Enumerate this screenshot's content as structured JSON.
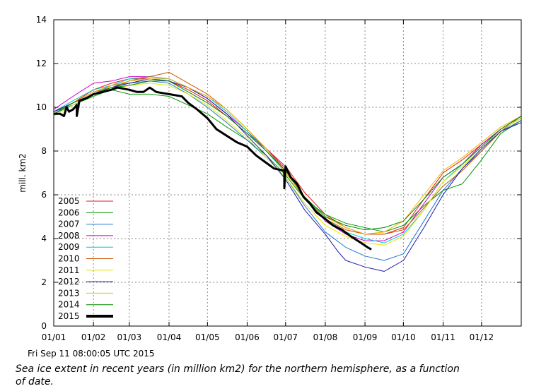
{
  "footer": {
    "timestamp": "Fri Sep 11 08:00:05 UTC 2015",
    "caption": "Sea ice extent in recent years (in million km2) for the northern hemisphere, as a function of date."
  },
  "chart_data": {
    "type": "line",
    "title": "",
    "xlabel": "",
    "ylabel": "mill. km2",
    "xlim": [
      0,
      365
    ],
    "ylim": [
      0,
      14
    ],
    "grid": true,
    "legend_position": "bottom-left",
    "x_ticks": [
      {
        "day": 0,
        "label": "01/01"
      },
      {
        "day": 31,
        "label": "01/02"
      },
      {
        "day": 59,
        "label": "01/03"
      },
      {
        "day": 90,
        "label": "01/04"
      },
      {
        "day": 120,
        "label": "01/05"
      },
      {
        "day": 151,
        "label": "01/06"
      },
      {
        "day": 181,
        "label": "01/07"
      },
      {
        "day": 212,
        "label": "01/08"
      },
      {
        "day": 243,
        "label": "01/09"
      },
      {
        "day": 273,
        "label": "01/10"
      },
      {
        "day": 304,
        "label": "01/11"
      },
      {
        "day": 334,
        "label": "01/12"
      }
    ],
    "y_ticks": [
      {
        "value": 0,
        "label": "0"
      },
      {
        "value": 2,
        "label": "2"
      },
      {
        "value": 4,
        "label": "4"
      },
      {
        "value": 6,
        "label": "6"
      },
      {
        "value": 8,
        "label": "8"
      },
      {
        "value": 10,
        "label": "10"
      },
      {
        "value": 12,
        "label": "12"
      },
      {
        "value": 14,
        "label": "14"
      }
    ],
    "series": [
      {
        "name": "2005",
        "color": "#e41a1c",
        "width": 1,
        "x": [
          0,
          15,
          31,
          45,
          59,
          75,
          90,
          105,
          120,
          135,
          151,
          166,
          181,
          196,
          212,
          228,
          243,
          258,
          273,
          289,
          304,
          319,
          334,
          349,
          365
        ],
        "y": [
          9.8,
          10.2,
          10.8,
          11.1,
          11.3,
          11.3,
          11.2,
          10.8,
          10.3,
          9.6,
          8.8,
          8.1,
          7.3,
          6.1,
          5.1,
          4.5,
          4.2,
          4.2,
          4.5,
          5.8,
          7.0,
          7.6,
          8.3,
          9.0,
          9.5
        ]
      },
      {
        "name": "2006",
        "color": "#009900",
        "width": 1,
        "x": [
          0,
          15,
          31,
          45,
          59,
          75,
          90,
          105,
          120,
          135,
          151,
          166,
          181,
          196,
          212,
          228,
          243,
          258,
          273,
          289,
          304,
          319,
          334,
          349,
          365
        ],
        "y": [
          9.7,
          10.1,
          10.5,
          10.8,
          10.6,
          10.6,
          10.5,
          10.1,
          9.7,
          9.1,
          8.5,
          7.8,
          6.9,
          5.8,
          5.1,
          4.7,
          4.5,
          4.3,
          4.6,
          5.5,
          6.2,
          6.5,
          7.6,
          8.8,
          9.4
        ]
      },
      {
        "name": "2007",
        "color": "#1f78d1",
        "width": 1,
        "x": [
          0,
          15,
          31,
          45,
          59,
          75,
          90,
          105,
          120,
          135,
          151,
          166,
          181,
          196,
          212,
          228,
          243,
          258,
          273,
          289,
          304,
          319,
          334,
          349,
          365
        ],
        "y": [
          9.8,
          10.1,
          10.6,
          11.0,
          11.1,
          11.2,
          11.1,
          10.6,
          10.0,
          9.3,
          8.5,
          7.7,
          6.8,
          5.5,
          4.3,
          3.6,
          3.2,
          3.0,
          3.3,
          4.8,
          6.2,
          7.2,
          8.0,
          8.9,
          9.4
        ]
      },
      {
        "name": "2008",
        "color": "#cc00cc",
        "width": 1,
        "x": [
          0,
          15,
          31,
          45,
          59,
          75,
          90,
          105,
          120,
          135,
          151,
          166,
          181,
          196,
          212,
          228,
          243,
          258,
          273,
          289,
          304,
          319,
          334,
          349,
          365
        ],
        "y": [
          9.9,
          10.5,
          11.1,
          11.2,
          11.4,
          11.4,
          11.3,
          10.9,
          10.4,
          9.7,
          8.9,
          8.1,
          7.2,
          5.9,
          4.8,
          4.2,
          3.9,
          3.9,
          4.3,
          5.6,
          6.8,
          7.4,
          8.3,
          9.0,
          9.6
        ]
      },
      {
        "name": "2009",
        "color": "#00cccc",
        "width": 1,
        "x": [
          0,
          15,
          31,
          45,
          59,
          75,
          90,
          105,
          120,
          135,
          151,
          166,
          181,
          196,
          212,
          228,
          243,
          258,
          273,
          289,
          304,
          319,
          334,
          349,
          365
        ],
        "y": [
          9.8,
          10.3,
          10.8,
          11.0,
          11.3,
          11.4,
          11.3,
          10.9,
          10.5,
          9.8,
          8.9,
          8.0,
          7.0,
          5.9,
          4.9,
          4.3,
          4.0,
          3.8,
          4.2,
          5.3,
          6.6,
          7.4,
          8.2,
          9.0,
          9.5
        ]
      },
      {
        "name": "2010",
        "color": "#cc5500",
        "width": 1,
        "x": [
          0,
          15,
          31,
          45,
          59,
          75,
          90,
          105,
          120,
          135,
          151,
          166,
          181,
          196,
          212,
          228,
          243,
          258,
          273,
          289,
          304,
          319,
          334,
          349,
          365
        ],
        "y": [
          9.8,
          10.2,
          10.7,
          10.9,
          11.2,
          11.4,
          11.6,
          11.1,
          10.6,
          9.9,
          9.0,
          8.1,
          7.1,
          5.8,
          4.9,
          4.4,
          4.2,
          4.2,
          4.4,
          5.4,
          6.4,
          7.1,
          8.0,
          8.9,
          9.6
        ]
      },
      {
        "name": "2011",
        "color": "#e6e600",
        "width": 1,
        "x": [
          0,
          15,
          31,
          45,
          59,
          75,
          90,
          105,
          120,
          135,
          151,
          166,
          181,
          196,
          212,
          228,
          243,
          258,
          273,
          289,
          304,
          319,
          334,
          349,
          365
        ],
        "y": [
          9.6,
          10.1,
          10.6,
          10.8,
          11.0,
          11.1,
          11.0,
          10.6,
          10.1,
          9.4,
          8.6,
          7.7,
          6.8,
          5.6,
          4.6,
          4.1,
          3.8,
          3.7,
          4.1,
          5.3,
          6.6,
          7.3,
          8.1,
          9.0,
          9.5
        ]
      },
      {
        "name": "2012",
        "color": "#1a1aaa",
        "width": 1,
        "x": [
          0,
          15,
          31,
          45,
          59,
          75,
          90,
          105,
          120,
          135,
          151,
          166,
          181,
          196,
          212,
          222,
          228,
          243,
          258,
          273,
          289,
          304,
          319,
          334,
          349,
          365
        ],
        "y": [
          9.8,
          10.2,
          10.6,
          10.9,
          11.1,
          11.3,
          11.2,
          10.9,
          10.4,
          9.7,
          8.7,
          7.8,
          6.7,
          5.3,
          4.2,
          3.4,
          3.0,
          2.7,
          2.5,
          3.0,
          4.5,
          6.0,
          7.2,
          8.1,
          8.9,
          9.3
        ]
      },
      {
        "name": "2013",
        "color": "#f0b400",
        "width": 1,
        "x": [
          0,
          15,
          31,
          45,
          59,
          75,
          90,
          105,
          120,
          135,
          151,
          166,
          181,
          196,
          212,
          228,
          243,
          258,
          273,
          289,
          304,
          319,
          334,
          349,
          365
        ],
        "y": [
          9.7,
          10.2,
          10.7,
          11.0,
          11.2,
          11.3,
          11.3,
          10.9,
          10.5,
          9.9,
          9.0,
          8.1,
          7.0,
          5.9,
          5.0,
          4.5,
          4.2,
          4.3,
          4.8,
          6.0,
          7.1,
          7.7,
          8.4,
          9.1,
          9.6
        ]
      },
      {
        "name": "2014",
        "color": "#008800",
        "width": 1,
        "x": [
          0,
          15,
          31,
          45,
          59,
          75,
          90,
          105,
          120,
          135,
          151,
          166,
          181,
          196,
          212,
          228,
          243,
          258,
          273,
          289,
          304,
          319,
          334,
          349,
          365
        ],
        "y": [
          9.7,
          10.2,
          10.6,
          10.9,
          11.0,
          11.2,
          11.2,
          10.7,
          10.2,
          9.6,
          8.8,
          8.0,
          7.1,
          5.9,
          5.0,
          4.6,
          4.4,
          4.5,
          4.8,
          5.8,
          6.8,
          7.4,
          8.2,
          9.0,
          9.6
        ]
      },
      {
        "name": "2015",
        "color": "#000000",
        "width": 3,
        "x": [
          0,
          5,
          8,
          10,
          12,
          15,
          18,
          18,
          20,
          25,
          31,
          38,
          45,
          50,
          59,
          65,
          70,
          75,
          80,
          90,
          100,
          105,
          112,
          120,
          127,
          135,
          143,
          151,
          158,
          165,
          172,
          180,
          180,
          181,
          185,
          190,
          195,
          200,
          205,
          212,
          218,
          225,
          232,
          240,
          245,
          248
        ],
        "y": [
          9.7,
          9.7,
          9.6,
          10.0,
          9.8,
          9.9,
          10.1,
          9.6,
          10.3,
          10.4,
          10.6,
          10.7,
          10.8,
          10.9,
          10.8,
          10.7,
          10.7,
          10.9,
          10.7,
          10.6,
          10.5,
          10.2,
          9.9,
          9.5,
          9.0,
          8.7,
          8.4,
          8.2,
          7.8,
          7.5,
          7.2,
          7.1,
          6.3,
          7.3,
          6.8,
          6.5,
          5.9,
          5.6,
          5.2,
          4.9,
          4.6,
          4.4,
          4.1,
          3.8,
          3.6,
          3.5
        ]
      }
    ]
  }
}
